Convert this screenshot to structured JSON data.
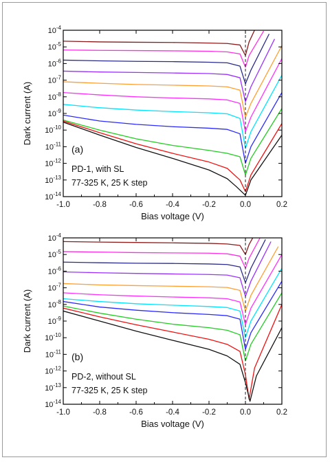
{
  "chart_data": [
    {
      "type": "line",
      "panel_label": "(a)",
      "annotation_lines": [
        "PD-1, with SL",
        "77-325 K, 25 K step"
      ],
      "xlabel": "Bias voltage (V)",
      "ylabel": "Dark current (A)",
      "xlim": [
        -1.0,
        0.2
      ],
      "ylim": [
        1e-14,
        0.0001
      ],
      "yscale": "log",
      "x_ticks": [
        "-1.0",
        "-0.8",
        "-0.6",
        "-0.4",
        "-0.2",
        "0.0",
        "0.2"
      ],
      "y_tick_exponents": [
        "-4",
        "-5",
        "-6",
        "-7",
        "-8",
        "-9",
        "-10",
        "-11",
        "-12",
        "-13",
        "-14"
      ],
      "y_tick_base": "10",
      "vertical_dashed_line_x": 0.0,
      "series": [
        {
          "color": "#8B1A1A",
          "values": [
            [
              -1.0,
              2.2e-05
            ],
            [
              -0.8,
              2e-05
            ],
            [
              -0.6,
              1.9e-05
            ],
            [
              -0.4,
              1.85e-05
            ],
            [
              -0.2,
              1.7e-05
            ],
            [
              -0.1,
              1.6e-05
            ],
            [
              -0.03,
              1.3e-05
            ],
            [
              0.0,
              3e-06
            ],
            [
              0.02,
              2e-05
            ],
            [
              0.05,
              0.0001
            ]
          ]
        },
        {
          "color": "#FF2EE6",
          "values": [
            [
              -1.0,
              6.5e-06
            ],
            [
              -0.8,
              6.2e-06
            ],
            [
              -0.6,
              6e-06
            ],
            [
              -0.4,
              5.8e-06
            ],
            [
              -0.2,
              5.5e-06
            ],
            [
              -0.1,
              5e-06
            ],
            [
              -0.03,
              3.8e-06
            ],
            [
              0.0,
              6e-07
            ],
            [
              0.02,
              3e-06
            ],
            [
              0.1,
              9e-05
            ]
          ]
        },
        {
          "color": "#2A2A8A",
          "values": [
            [
              -1.0,
              1.6e-06
            ],
            [
              -0.8,
              1.45e-06
            ],
            [
              -0.6,
              1.35e-06
            ],
            [
              -0.4,
              1.3e-06
            ],
            [
              -0.2,
              1.2e-06
            ],
            [
              -0.1,
              1.1e-06
            ],
            [
              -0.03,
              7e-07
            ],
            [
              0.0,
              6e-08
            ],
            [
              0.03,
              4e-07
            ],
            [
              0.13,
              6e-05
            ]
          ]
        },
        {
          "color": "#9B30FF",
          "values": [
            [
              -1.0,
              3.5e-07
            ],
            [
              -0.8,
              3.1e-07
            ],
            [
              -0.6,
              2.9e-07
            ],
            [
              -0.4,
              2.7e-07
            ],
            [
              -0.2,
              2.5e-07
            ],
            [
              -0.1,
              2.2e-07
            ],
            [
              -0.03,
              1.4e-07
            ],
            [
              0.0,
              5e-09
            ],
            [
              0.03,
              4e-08
            ],
            [
              0.16,
              3e-05
            ]
          ]
        },
        {
          "color": "#FF9F30",
          "values": [
            [
              -1.0,
              8e-08
            ],
            [
              -0.8,
              6.5e-08
            ],
            [
              -0.6,
              5.5e-08
            ],
            [
              -0.4,
              5e-08
            ],
            [
              -0.2,
              4.5e-08
            ],
            [
              -0.1,
              4e-08
            ],
            [
              -0.03,
              2.5e-08
            ],
            [
              0.0,
              6e-10
            ],
            [
              0.03,
              4e-09
            ],
            [
              0.2,
              1.2e-05
            ]
          ]
        },
        {
          "color": "#FF30FF",
          "values": [
            [
              -1.0,
              1.8e-08
            ],
            [
              -0.8,
              1.3e-08
            ],
            [
              -0.6,
              1e-08
            ],
            [
              -0.4,
              8.5e-09
            ],
            [
              -0.2,
              7.5e-09
            ],
            [
              -0.1,
              6.5e-09
            ],
            [
              -0.03,
              4e-09
            ],
            [
              0.0,
              8e-11
            ],
            [
              0.03,
              6e-10
            ],
            [
              0.2,
              2e-06
            ]
          ]
        },
        {
          "color": "#00E5FF",
          "values": [
            [
              -1.0,
              3.5e-09
            ],
            [
              -0.8,
              2.2e-09
            ],
            [
              -0.6,
              1.6e-09
            ],
            [
              -0.4,
              1.3e-09
            ],
            [
              -0.2,
              1.1e-09
            ],
            [
              -0.1,
              9.5e-10
            ],
            [
              -0.03,
              5e-10
            ],
            [
              0.0,
              8e-12
            ],
            [
              0.03,
              8e-11
            ],
            [
              0.2,
              2e-07
            ]
          ]
        },
        {
          "color": "#2A2AFF",
          "values": [
            [
              -1.0,
              8e-10
            ],
            [
              -0.8,
              3.5e-10
            ],
            [
              -0.6,
              2.2e-10
            ],
            [
              -0.4,
              1.6e-10
            ],
            [
              -0.2,
              1.3e-10
            ],
            [
              -0.1,
              1.1e-10
            ],
            [
              -0.03,
              6e-11
            ],
            [
              0.0,
              1e-12
            ],
            [
              0.03,
              1e-11
            ],
            [
              0.2,
              1.8e-08
            ]
          ]
        },
        {
          "color": "#22CC22",
          "values": [
            [
              -1.0,
              4e-10
            ],
            [
              -0.8,
              1e-10
            ],
            [
              -0.6,
              3e-11
            ],
            [
              -0.4,
              1.2e-11
            ],
            [
              -0.2,
              6e-12
            ],
            [
              -0.1,
              4e-12
            ],
            [
              -0.03,
              2.5e-12
            ],
            [
              0.0,
              2e-13
            ],
            [
              0.03,
              2e-12
            ],
            [
              0.2,
              2e-09
            ]
          ]
        },
        {
          "color": "#EE1111",
          "values": [
            [
              -1.0,
              3.5e-10
            ],
            [
              -0.8,
              7e-11
            ],
            [
              -0.6,
              1.5e-11
            ],
            [
              -0.4,
              4e-12
            ],
            [
              -0.2,
              1.2e-12
            ],
            [
              -0.1,
              5e-13
            ],
            [
              -0.03,
              1e-13
            ],
            [
              0.0,
              2e-14
            ],
            [
              0.03,
              2e-13
            ],
            [
              0.2,
              2.5e-10
            ]
          ]
        },
        {
          "color": "#111111",
          "values": [
            [
              -1.0,
              3e-10
            ],
            [
              -0.8,
              5e-11
            ],
            [
              -0.6,
              9e-12
            ],
            [
              -0.4,
              2e-12
            ],
            [
              -0.2,
              4e-13
            ],
            [
              -0.1,
              1.2e-13
            ],
            [
              -0.05,
              4e-14
            ],
            [
              0.0,
              1.2e-14
            ],
            [
              0.03,
              1e-13
            ],
            [
              0.2,
              5e-11
            ]
          ]
        }
      ]
    },
    {
      "type": "line",
      "panel_label": "(b)",
      "annotation_lines": [
        "PD-2, without SL",
        "77-325 K, 25 K step"
      ],
      "xlabel": "Bias voltage (V)",
      "ylabel": "Dark current (A)",
      "xlim": [
        -1.0,
        0.2
      ],
      "ylim": [
        1e-14,
        0.0001
      ],
      "yscale": "log",
      "x_ticks": [
        "-1.0",
        "-0.8",
        "-0.6",
        "-0.4",
        "-0.2",
        "0.0",
        "0.2"
      ],
      "y_tick_exponents": [
        "-4",
        "-5",
        "-6",
        "-7",
        "-8",
        "-9",
        "-10",
        "-11",
        "-12",
        "-13",
        "-14"
      ],
      "y_tick_base": "10",
      "vertical_dashed_line_x": 0.0,
      "series": [
        {
          "color": "#8B1A1A",
          "values": [
            [
              -1.0,
              6e-05
            ],
            [
              -0.8,
              5.6e-05
            ],
            [
              -0.6,
              5.3e-05
            ],
            [
              -0.4,
              5e-05
            ],
            [
              -0.2,
              4.7e-05
            ],
            [
              -0.1,
              4.3e-05
            ],
            [
              -0.03,
              3.5e-05
            ],
            [
              0.0,
              1e-05
            ],
            [
              0.02,
              4e-05
            ],
            [
              0.04,
              0.0001
            ]
          ]
        },
        {
          "color": "#FF2EE6",
          "values": [
            [
              -1.0,
              1.5e-05
            ],
            [
              -0.8,
              1.4e-05
            ],
            [
              -0.6,
              1.3e-05
            ],
            [
              -0.4,
              1.25e-05
            ],
            [
              -0.2,
              1.2e-05
            ],
            [
              -0.1,
              1.1e-05
            ],
            [
              -0.03,
              8e-06
            ],
            [
              0.0,
              1.5e-06
            ],
            [
              0.02,
              6e-06
            ],
            [
              0.08,
              0.0001
            ]
          ]
        },
        {
          "color": "#2A2A8A",
          "values": [
            [
              -1.0,
              3.5e-06
            ],
            [
              -0.8,
              3.2e-06
            ],
            [
              -0.6,
              3e-06
            ],
            [
              -0.4,
              2.9e-06
            ],
            [
              -0.2,
              2.7e-06
            ],
            [
              -0.1,
              2.5e-06
            ],
            [
              -0.03,
              1.8e-06
            ],
            [
              0.0,
              2e-07
            ],
            [
              0.03,
              1.5e-06
            ],
            [
              0.11,
              8e-05
            ]
          ]
        },
        {
          "color": "#9B30FF",
          "values": [
            [
              -1.0,
              9e-07
            ],
            [
              -0.8,
              8e-07
            ],
            [
              -0.6,
              7.3e-07
            ],
            [
              -0.4,
              6.8e-07
            ],
            [
              -0.2,
              6.3e-07
            ],
            [
              -0.1,
              5.8e-07
            ],
            [
              -0.03,
              4e-07
            ],
            [
              0.0,
              3e-08
            ],
            [
              0.03,
              2.5e-07
            ],
            [
              0.14,
              6e-05
            ]
          ]
        },
        {
          "color": "#FF9F30",
          "values": [
            [
              -1.0,
              1.8e-07
            ],
            [
              -0.8,
              1.5e-07
            ],
            [
              -0.6,
              1.35e-07
            ],
            [
              -0.4,
              1.25e-07
            ],
            [
              -0.2,
              1.15e-07
            ],
            [
              -0.1,
              1.05e-07
            ],
            [
              -0.03,
              7e-08
            ],
            [
              0.0,
              4e-09
            ],
            [
              0.03,
              3.5e-08
            ],
            [
              0.18,
              3e-05
            ]
          ]
        },
        {
          "color": "#FF30FF",
          "values": [
            [
              -1.0,
              5e-08
            ],
            [
              -0.8,
              3.8e-08
            ],
            [
              -0.6,
              3.2e-08
            ],
            [
              -0.4,
              2.8e-08
            ],
            [
              -0.2,
              2.5e-08
            ],
            [
              -0.1,
              2.2e-08
            ],
            [
              -0.03,
              1.4e-08
            ],
            [
              0.0,
              6e-10
            ],
            [
              0.03,
              6e-09
            ],
            [
              0.2,
              1e-05
            ]
          ]
        },
        {
          "color": "#00E5FF",
          "values": [
            [
              -1.0,
              2.2e-08
            ],
            [
              -0.8,
              1.5e-08
            ],
            [
              -0.6,
              1.1e-08
            ],
            [
              -0.4,
              9e-09
            ],
            [
              -0.2,
              7.5e-09
            ],
            [
              -0.1,
              6.5e-09
            ],
            [
              -0.03,
              4e-09
            ],
            [
              0.0,
              1e-10
            ],
            [
              0.03,
              1e-09
            ],
            [
              0.2,
              1.5e-06
            ]
          ]
        },
        {
          "color": "#2A2AFF",
          "values": [
            [
              -1.0,
              1.5e-08
            ],
            [
              -0.8,
              7e-09
            ],
            [
              -0.6,
              4.5e-09
            ],
            [
              -0.4,
              3.2e-09
            ],
            [
              -0.2,
              2.5e-09
            ],
            [
              -0.1,
              2.1e-09
            ],
            [
              -0.03,
              1.3e-09
            ],
            [
              0.0,
              2e-11
            ],
            [
              0.03,
              2e-10
            ],
            [
              0.2,
              2.5e-07
            ]
          ]
        },
        {
          "color": "#22CC22",
          "values": [
            [
              -1.0,
              8e-09
            ],
            [
              -0.8,
              3e-09
            ],
            [
              -0.6,
              1.3e-09
            ],
            [
              -0.4,
              6.5e-10
            ],
            [
              -0.2,
              4e-10
            ],
            [
              -0.1,
              2.8e-10
            ],
            [
              -0.03,
              1.5e-10
            ],
            [
              0.0,
              4e-12
            ],
            [
              0.03,
              4e-11
            ],
            [
              0.2,
              5e-08
            ]
          ]
        },
        {
          "color": "#EE1111",
          "values": [
            [
              -1.0,
              6e-09
            ],
            [
              -0.8,
              1.8e-09
            ],
            [
              -0.6,
              6e-10
            ],
            [
              -0.4,
              2.2e-10
            ],
            [
              -0.2,
              8e-11
            ],
            [
              -0.1,
              4e-11
            ],
            [
              -0.03,
              1.5e-11
            ],
            [
              0.0,
              6e-13
            ],
            [
              0.02,
              2e-14
            ],
            [
              0.05,
              1.5e-12
            ],
            [
              0.2,
              1e-08
            ]
          ]
        },
        {
          "color": "#111111",
          "values": [
            [
              -1.0,
              4e-09
            ],
            [
              -0.8,
              1e-09
            ],
            [
              -0.6,
              2.5e-10
            ],
            [
              -0.4,
              7e-11
            ],
            [
              -0.2,
              2e-11
            ],
            [
              -0.1,
              8e-12
            ],
            [
              -0.03,
              2.5e-12
            ],
            [
              0.0,
              2e-13
            ],
            [
              0.025,
              1.5e-14
            ],
            [
              0.06,
              5e-13
            ],
            [
              0.2,
              4e-10
            ]
          ]
        }
      ]
    }
  ]
}
